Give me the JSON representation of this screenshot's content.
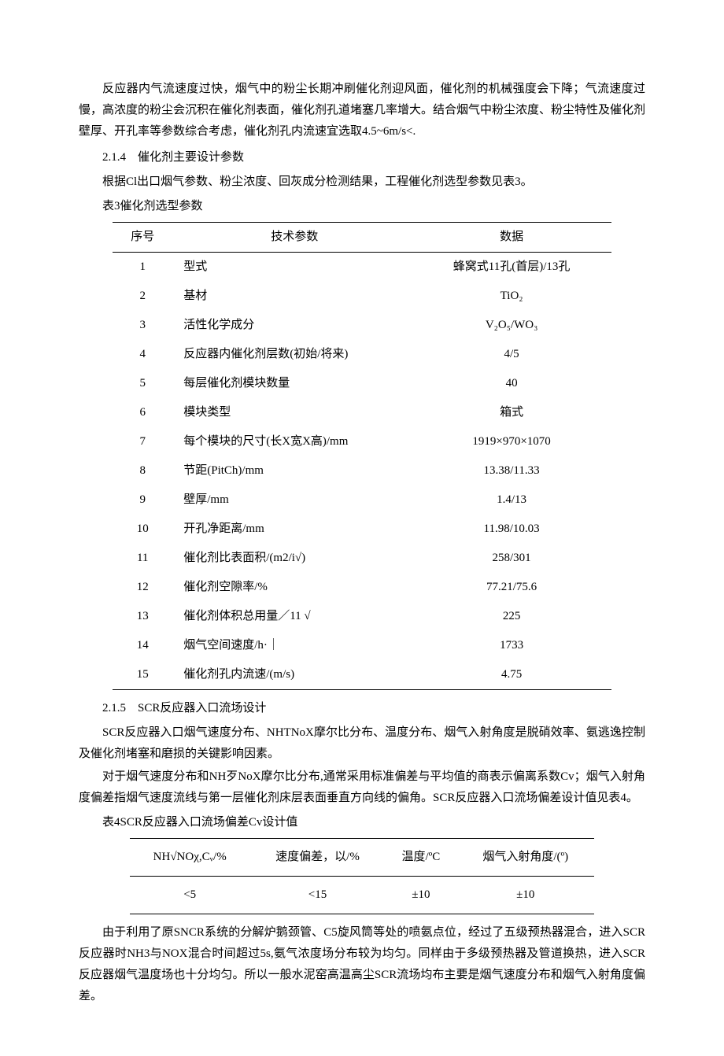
{
  "paragraphs": {
    "p1": "反应器内气流速度过快，烟气中的粉尘长期冲刷催化剂迎风面，催化剂的机械强度会下降；气流速度过慢，高浓度的粉尘会沉积在催化剂表面，催化剂孔道堵塞几率增大。结合烟气中粉尘浓度、粉尘特性及催化剂壁厚、开孔率等参数综合考虑，催化剂孔内流速宜选取4.5~6m/s<.",
    "h214": "2.1.4　催化剂主要设计参数",
    "p2": "根据Cl出口烟气参数、粉尘浓度、回灰成分检测结果，工程催化剂选型参数见表3。",
    "cap3": "表3催化剂选型参数",
    "h215": "2.1.5　SCR反应器入口流场设计",
    "p3": "SCR反应器入口烟气速度分布、NHTNoX摩尔比分布、温度分布、烟气入射角度是脱硝效率、氨逃逸控制及催化剂堵塞和磨损的关键影响因素。",
    "p4": "对于烟气速度分布和NH歹NoX摩尔比分布,通常采用标准偏差与平均值的商表示偏离系数Cv；烟气入射角度偏差指烟气速度流线与第一层催化剂床层表面垂直方向线的偏角。SCR反应器入口流场偏差设计值见表4。",
    "cap4": "表4SCR反应器入口流场偏差Cv设计值",
    "p5": "由于利用了原SNCR系统的分解炉鹅颈管、C5旋风筒等处的喷氨点位，经过了五级预热器混合，进入SCR反应器时NH3与NOX混合时间超过5s,氨气浓度场分布较为均匀。同样由于多级预热器及管道换热，进入SCR反应器烟气温度场也十分均匀。所以一般水泥窑高温高尘SCR流场均布主要是烟气速度分布和烟气入射角度偏差。"
  },
  "table3": {
    "headers": {
      "seq": "序号",
      "param": "技术参数",
      "data": "数据"
    },
    "rows": [
      {
        "seq": "1",
        "param": "型式",
        "data": "蜂窝式11孔(首层)/13孔"
      },
      {
        "seq": "2",
        "param": "基材",
        "data": "TiO₂"
      },
      {
        "seq": "3",
        "param": "活性化学成分",
        "data": "V₂O₅/WO₃"
      },
      {
        "seq": "4",
        "param": "反应器内催化剂层数(初始/将来)",
        "data": "4/5"
      },
      {
        "seq": "5",
        "param": "每层催化剂模块数量",
        "data": "40"
      },
      {
        "seq": "6",
        "param": "模块类型",
        "data": "箱式"
      },
      {
        "seq": "7",
        "param": "每个模块的尺寸(长X宽X高)/mm",
        "data": "1919×970×1070"
      },
      {
        "seq": "8",
        "param": "节距(PitCh)/mm",
        "data": "13.38/11.33"
      },
      {
        "seq": "9",
        "param": "壁厚/mm",
        "data": "1.4/13"
      },
      {
        "seq": "10",
        "param": "开孔净距离/mm",
        "data": "11.98/10.03"
      },
      {
        "seq": "11",
        "param": "催化剂比表面积/(m2/i√)",
        "data": "258/301"
      },
      {
        "seq": "12",
        "param": "催化剂空隙率/%",
        "data": "77.21/75.6"
      },
      {
        "seq": "13",
        "param": "催化剂体积总用量／11 √",
        "data": "225"
      },
      {
        "seq": "14",
        "param": "烟气空间速度/h·｜",
        "data": "1733"
      },
      {
        "seq": "15",
        "param": "催化剂孔内流速/(m/s)",
        "data": "4.75"
      }
    ]
  },
  "table4": {
    "headers": {
      "c1": "NH√NOχ,Cᵥ/%",
      "c2": "速度偏差，以/%",
      "c3": "温度/ºC",
      "c4": "烟气入射角度/(º)"
    },
    "row": {
      "c1": "<5",
      "c2": "<15",
      "c3": "±10",
      "c4": "±10"
    }
  }
}
